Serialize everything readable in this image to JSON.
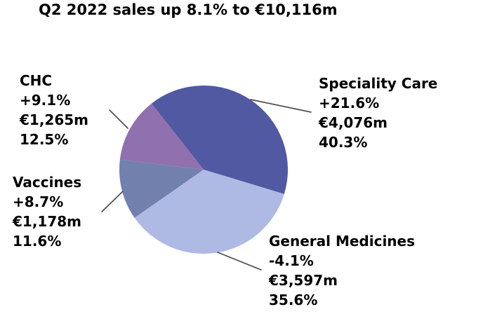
{
  "chart_data": {
    "type": "pie",
    "title": "Q2 2022 sales up 8.1% to €10,116m",
    "total_value": "€10,116m",
    "total_growth": "+8.1%",
    "period": "Q2 2022",
    "legend_position": "none",
    "labels_position": "outside-with-leader-lines",
    "start_angle_deg": -38.2,
    "direction": "clockwise",
    "slices": [
      {
        "label": "Speciality Care",
        "growth": "+21.6%",
        "value": "€4,076m",
        "value_eur_m": 4076,
        "share": "40.3%",
        "share_pct": 40.3,
        "color": "#5159a3"
      },
      {
        "label": "General Medicines",
        "growth": "-4.1%",
        "value": "€3,597m",
        "value_eur_m": 3597,
        "share": "35.6%",
        "share_pct": 35.6,
        "color": "#aebae4"
      },
      {
        "label": "Vaccines",
        "growth": "+8.7%",
        "value": "€1,178m",
        "value_eur_m": 1178,
        "share": "11.6%",
        "share_pct": 11.6,
        "color": "#7280ae"
      },
      {
        "label": "CHC",
        "growth": "+9.1%",
        "value": "€1,265m",
        "value_eur_m": 1265,
        "share": "12.5%",
        "share_pct": 12.5,
        "color": "#9170af"
      }
    ],
    "leader_line_color": "#4d4d4d",
    "text_color": "#000000"
  }
}
